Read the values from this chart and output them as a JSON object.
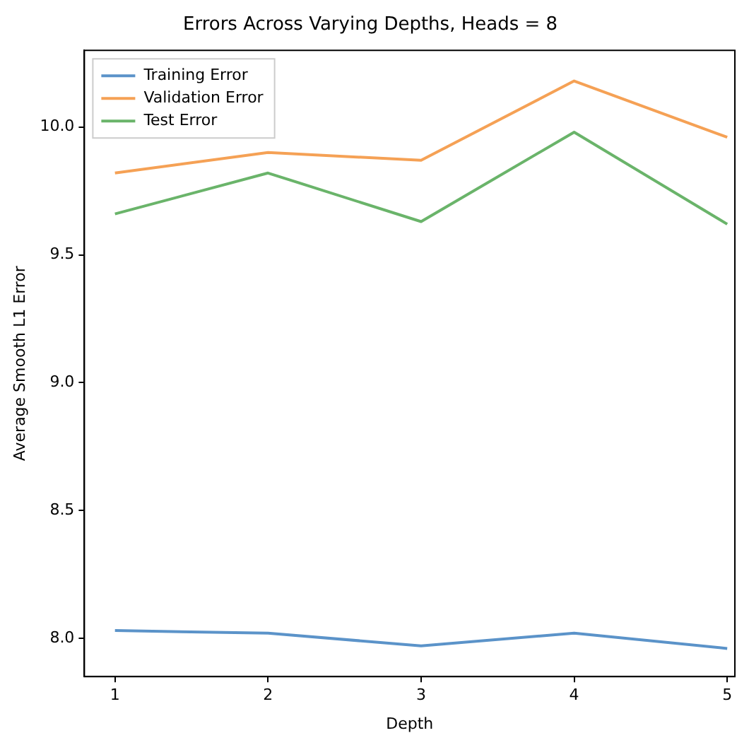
{
  "chart_data": {
    "type": "line",
    "title": "Errors Across Varying Depths, Heads = 8",
    "xlabel": "Depth",
    "ylabel": "Average Smooth L1 Error",
    "x": [
      1,
      2,
      3,
      4,
      5
    ],
    "series": [
      {
        "name": "Training Error",
        "color": "#5b93c9",
        "values": [
          8.03,
          8.02,
          7.97,
          8.02,
          7.96
        ]
      },
      {
        "name": "Validation Error",
        "color": "#f5a155",
        "values": [
          9.82,
          9.9,
          9.87,
          10.18,
          9.96
        ]
      },
      {
        "name": "Test Error",
        "color": "#6ab46a",
        "values": [
          9.66,
          9.82,
          9.63,
          9.98,
          9.62
        ]
      }
    ],
    "xlim": [
      0.8,
      5.05
    ],
    "xticks": [
      1,
      2,
      3,
      4,
      5
    ],
    "ylim": [
      7.85,
      10.3
    ],
    "yticks": [
      {
        "value": 8,
        "label": "8.0"
      },
      {
        "value": 8.5,
        "label": "8.5"
      },
      {
        "value": 9,
        "label": "9.0"
      },
      {
        "value": 9.5,
        "label": "9.5"
      },
      {
        "value": 10,
        "label": "10.0"
      }
    ],
    "grid": false,
    "legend": "top left",
    "marker": "none",
    "line_style": "solid"
  }
}
